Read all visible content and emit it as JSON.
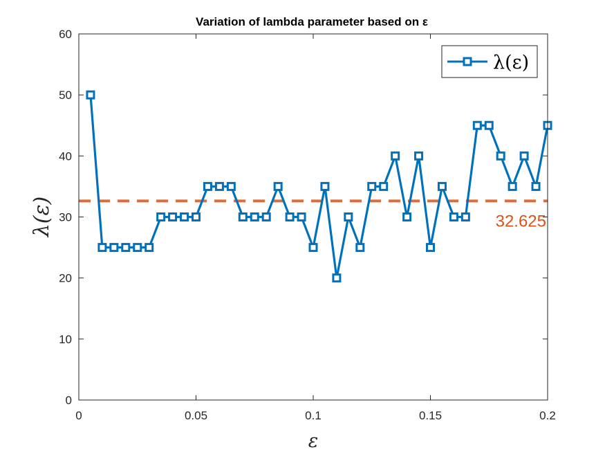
{
  "chart_data": {
    "type": "line",
    "title": "Variation of lambda parameter based on ε",
    "xlabel": "ε",
    "ylabel": "λ(ε)",
    "xlim": [
      0,
      0.2
    ],
    "ylim": [
      0,
      60
    ],
    "xticks": [
      0,
      0.05,
      0.1,
      0.15,
      0.2
    ],
    "xtick_labels": [
      "0",
      "0.05",
      "0.1",
      "0.15",
      "0.2"
    ],
    "yticks": [
      0,
      10,
      20,
      30,
      40,
      50,
      60
    ],
    "ytick_labels": [
      "0",
      "10",
      "20",
      "30",
      "40",
      "50",
      "60"
    ],
    "grid": false,
    "legend_position": "top-right",
    "series": [
      {
        "name": "λ(ε)",
        "color": "#0072BD",
        "marker": "square",
        "x": [
          0.005,
          0.01,
          0.015,
          0.02,
          0.025,
          0.03,
          0.035,
          0.04,
          0.045,
          0.05,
          0.055,
          0.06,
          0.065,
          0.07,
          0.075,
          0.08,
          0.085,
          0.09,
          0.095,
          0.1,
          0.105,
          0.11,
          0.115,
          0.12,
          0.125,
          0.13,
          0.135,
          0.14,
          0.145,
          0.15,
          0.155,
          0.16,
          0.165,
          0.17,
          0.175,
          0.18,
          0.185,
          0.19,
          0.195,
          0.2
        ],
        "y": [
          50,
          25,
          25,
          25,
          25,
          25,
          30,
          30,
          30,
          30,
          35,
          35,
          35,
          30,
          30,
          30,
          35,
          30,
          30,
          25,
          35,
          20,
          30,
          25,
          35,
          35,
          40,
          30,
          40,
          25,
          35,
          30,
          30,
          45,
          45,
          40,
          35,
          40,
          35,
          45
        ]
      }
    ],
    "reference_line": {
      "type": "horizontal",
      "value": 32.625,
      "label": "32.625",
      "color": "#D95319",
      "style": "dashed"
    }
  }
}
